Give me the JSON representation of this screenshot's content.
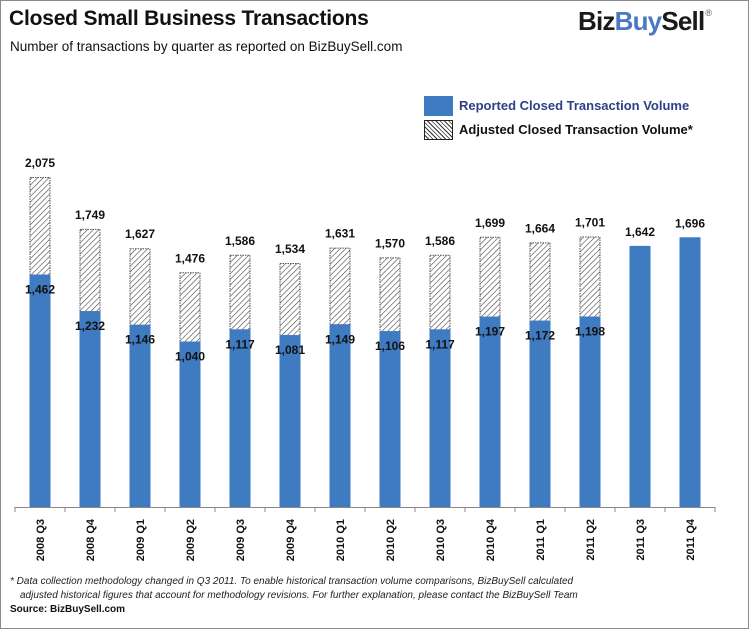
{
  "header": {
    "title": "Closed Small Business Transactions",
    "subtitle": "Number of transactions by quarter as reported on BizBuySell.com"
  },
  "logo": {
    "part1": "Biz",
    "part2": "Buy",
    "part3": "Sell",
    "mark": "®",
    "colors": {
      "dark": "#1a1a1a",
      "accent": "#4a78c2"
    }
  },
  "legend": {
    "reported": "Reported Closed Transaction Volume",
    "adjusted": "Adjusted Closed Transaction Volume*"
  },
  "footnote": {
    "line1": "* Data collection methodology changed in Q3 2011. To enable historical transaction volume comparisons, BizBuySell calculated",
    "line2": "adjusted historical figures that account for methodology revisions. For further explanation, please contact the BizBuySell Team"
  },
  "source": "Source: BizBuySell.com",
  "chart_data": {
    "type": "bar",
    "title": "Closed Small Business Transactions",
    "subtitle": "Number of transactions by quarter as reported on BizBuySell.com",
    "xlabel": "",
    "ylabel": "",
    "ylim": [
      0,
      2100
    ],
    "grid": false,
    "legend_position": "top-right",
    "categories": [
      "2008 Q3",
      "2008 Q4",
      "2009 Q1",
      "2009 Q2",
      "2009 Q3",
      "2009 Q4",
      "2010 Q1",
      "2010 Q2",
      "2010 Q3",
      "2010 Q4",
      "2011 Q1",
      "2011 Q2",
      "2011 Q3",
      "2011 Q4"
    ],
    "series": [
      {
        "name": "Reported Closed Transaction Volume",
        "color": "#3f7bc1",
        "fill": "solid",
        "values": [
          1462,
          1232,
          1146,
          1040,
          1117,
          1081,
          1149,
          1106,
          1117,
          1197,
          1172,
          1198,
          1642,
          1696
        ]
      },
      {
        "name": "Adjusted Closed Transaction Volume*",
        "color": "#333333",
        "fill": "hatch",
        "values": [
          2075,
          1749,
          1627,
          1476,
          1586,
          1534,
          1631,
          1570,
          1586,
          1699,
          1664,
          1701,
          null,
          null
        ]
      }
    ],
    "reported_labels": [
      "1,462",
      "1,232",
      "1,146",
      "1,040",
      "1,117",
      "1,081",
      "1,149",
      "1,106",
      "1,117",
      "1,197",
      "1,172",
      "1,198",
      "1,642",
      "1,696"
    ],
    "adjusted_labels": [
      "2,075",
      "1,749",
      "1,627",
      "1,476",
      "1,586",
      "1,534",
      "1,631",
      "1,570",
      "1,586",
      "1,699",
      "1,664",
      "1,701",
      null,
      null
    ],
    "note": "Adjusted values are totals; the hatched segment spans from the reported value to the adjusted total."
  }
}
